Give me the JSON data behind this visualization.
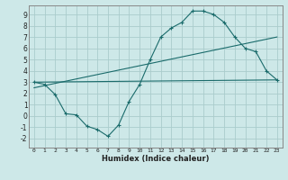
{
  "xlabel": "Humidex (Indice chaleur)",
  "background_color": "#cde8e8",
  "grid_color": "#aacccc",
  "line_color": "#1a6b6b",
  "xlim": [
    -0.5,
    23.5
  ],
  "ylim": [
    -2.8,
    9.8
  ],
  "xticks": [
    0,
    1,
    2,
    3,
    4,
    5,
    6,
    7,
    8,
    9,
    10,
    11,
    12,
    13,
    14,
    15,
    16,
    17,
    18,
    19,
    20,
    21,
    22,
    23
  ],
  "yticks": [
    -2,
    -1,
    0,
    1,
    2,
    3,
    4,
    5,
    6,
    7,
    8,
    9
  ],
  "curve1_x": [
    0,
    1,
    2,
    3,
    4,
    5,
    6,
    7,
    8,
    9,
    10,
    11,
    12,
    13,
    14,
    15,
    16,
    17,
    18,
    19,
    20,
    21,
    22,
    23
  ],
  "curve1_y": [
    3.0,
    2.8,
    1.9,
    0.2,
    0.1,
    -0.9,
    -1.2,
    -1.8,
    -0.8,
    1.3,
    2.8,
    5.0,
    7.0,
    7.8,
    8.3,
    9.3,
    9.3,
    9.0,
    8.3,
    7.0,
    6.0,
    5.7,
    4.0,
    3.2
  ],
  "curve2_x": [
    0,
    23
  ],
  "curve2_y": [
    3.0,
    3.2
  ],
  "curve3_x": [
    0,
    23
  ],
  "curve3_y": [
    2.5,
    7.0
  ]
}
